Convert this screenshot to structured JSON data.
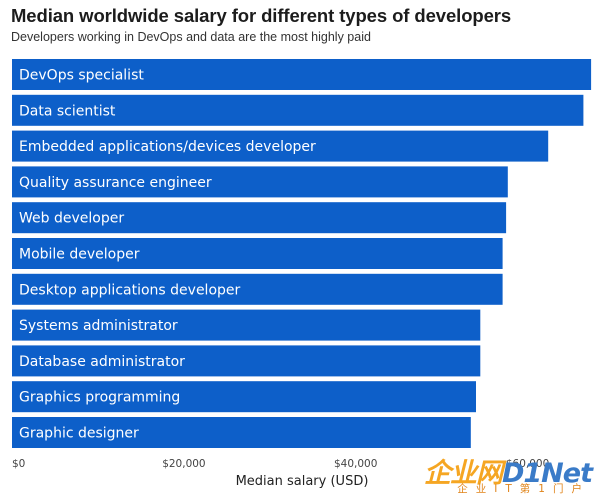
{
  "chart_data": {
    "type": "bar",
    "orientation": "horizontal",
    "title": "Median worldwide salary for different types of developers",
    "subtitle": "Developers working in DevOps and data are the most highly paid",
    "xlabel": "Median salary (USD)",
    "ylabel": "",
    "xlim": [
      0,
      67500
    ],
    "x_ticks": [
      {
        "value": 0,
        "label": "$0"
      },
      {
        "value": 20000,
        "label": "$20,000"
      },
      {
        "value": 40000,
        "label": "$40,000"
      },
      {
        "value": 60000,
        "label": "$60,000"
      }
    ],
    "grid": false,
    "bar_color": "#0d5fc9",
    "categories": [
      "DevOps specialist",
      "Data scientist",
      "Embedded applications/devices developer",
      "Quality assurance engineer",
      "Web developer",
      "Mobile developer",
      "Desktop applications developer",
      "Systems administrator",
      "Database administrator",
      "Graphics programming",
      "Graphic designer"
    ],
    "values": [
      67400,
      66500,
      62400,
      57700,
      57500,
      57100,
      57100,
      54500,
      54500,
      54000,
      53400
    ]
  },
  "watermark": {
    "main_left": "企业网",
    "main_right": "D1Net",
    "sub": "企业IT第1门户",
    "colors": {
      "left": "#f5a623",
      "right": "#3a7bc8"
    }
  }
}
